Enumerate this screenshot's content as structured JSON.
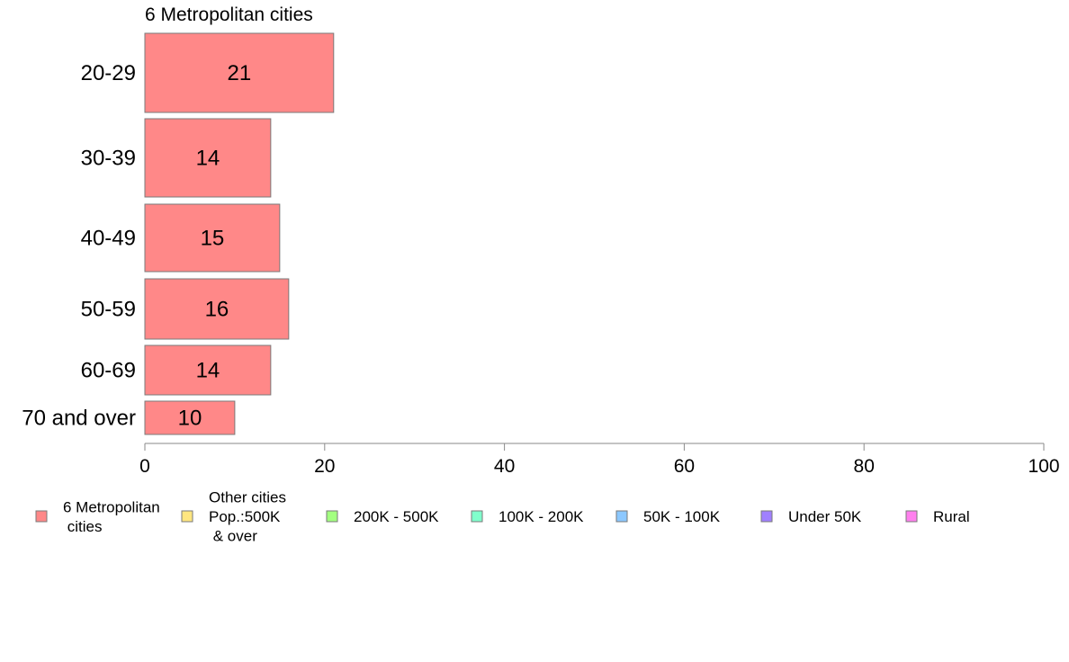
{
  "chart_data": {
    "type": "bar",
    "orientation": "horizontal",
    "title": "6 Metropolitan cities",
    "categories": [
      "20-29",
      "30-39",
      "40-49",
      "50-59",
      "60-69",
      "70 and over"
    ],
    "values": [
      21,
      14,
      15,
      16,
      14,
      10
    ],
    "data_labels": [
      "21",
      "14",
      "15",
      "16",
      "14",
      "10"
    ],
    "xlim": [
      0,
      100
    ],
    "x_ticks": [
      0,
      20,
      40,
      60,
      80,
      100
    ],
    "grid": false,
    "legend_position": "bottom",
    "series_color": "#ff8888",
    "legend": [
      {
        "lines": [
          "6 Metropolitan",
          " cities"
        ],
        "color": "#ff8888"
      },
      {
        "lines": [
          "Other cities",
          "Pop.:500K",
          " & over"
        ],
        "color": "#ffe680"
      },
      {
        "lines": [
          "200K - 500K"
        ],
        "color": "#a3ff80"
      },
      {
        "lines": [
          "100K - 200K"
        ],
        "color": "#80ffcc"
      },
      {
        "lines": [
          "50K - 100K"
        ],
        "color": "#8cc8ff"
      },
      {
        "lines": [
          "Under 50K"
        ],
        "color": "#a080ff"
      },
      {
        "lines": [
          "Rural"
        ],
        "color": "#ff80ee"
      }
    ]
  }
}
